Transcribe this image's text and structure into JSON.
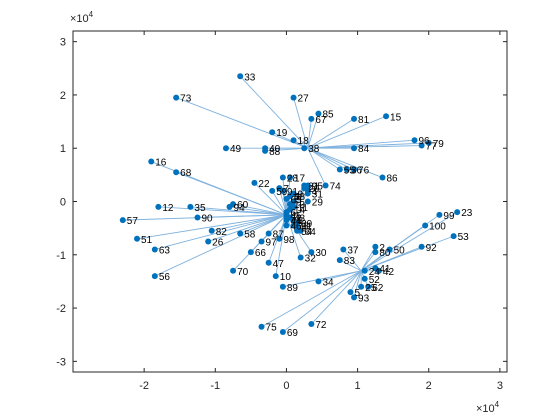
{
  "chart_data": {
    "type": "scatter",
    "title": "",
    "xlabel": "",
    "ylabel": "",
    "xlim": [
      -3,
      3.1
    ],
    "ylim": [
      -3.2,
      3.2
    ],
    "x_exponent": {
      "base": "×10",
      "power": "4"
    },
    "y_exponent": {
      "base": "×10",
      "power": "4"
    },
    "xticks": [
      -2,
      -1,
      0,
      1,
      2,
      3
    ],
    "yticks": [
      -3,
      -2,
      -1,
      0,
      1,
      2,
      3
    ],
    "xtick_labels": [
      "-2",
      "-1",
      "0",
      "1",
      "2",
      "3"
    ],
    "ytick_labels": [
      "-3",
      "-2",
      "-1",
      "0",
      "1",
      "2",
      "3"
    ],
    "grid": false,
    "legend": "none",
    "point_color": "#0072BD",
    "edge_color": "#7FB2DE",
    "hubs": [
      {
        "id": "h0",
        "x": 0.0,
        "y": -0.25
      },
      {
        "id": "h1",
        "x": 0.3,
        "y": 1.0
      },
      {
        "id": "h2",
        "x": 1.05,
        "y": -1.3
      }
    ],
    "points": [
      {
        "label": "2",
        "x": 1.25,
        "y": -0.85,
        "hub": "h2"
      },
      {
        "label": "5",
        "x": 0.9,
        "y": -1.7,
        "hub": "h2"
      },
      {
        "label": "10",
        "x": -0.15,
        "y": -1.4,
        "hub": "h0"
      },
      {
        "label": "12",
        "x": -1.8,
        "y": -0.1,
        "hub": "h0"
      },
      {
        "label": "15",
        "x": 1.4,
        "y": 1.6,
        "hub": "h1"
      },
      {
        "label": "16",
        "x": -1.9,
        "y": 0.75,
        "hub": "h0"
      },
      {
        "label": "18",
        "x": 0.1,
        "y": 1.15,
        "hub": "h1"
      },
      {
        "label": "19",
        "x": -0.2,
        "y": 1.3,
        "hub": "h1"
      },
      {
        "label": "22",
        "x": -0.45,
        "y": 0.35,
        "hub": "h0"
      },
      {
        "label": "23",
        "x": 2.4,
        "y": -0.2,
        "hub": "h2"
      },
      {
        "label": "24",
        "x": 1.1,
        "y": -1.3,
        "hub": "h2"
      },
      {
        "label": "26",
        "x": -1.1,
        "y": -0.75,
        "hub": "h0"
      },
      {
        "label": "27",
        "x": 0.1,
        "y": 1.95,
        "hub": "h1"
      },
      {
        "label": "29",
        "x": 0.3,
        "y": 0.0,
        "hub": "h0"
      },
      {
        "label": "30",
        "x": 0.35,
        "y": -0.95,
        "hub": "h0"
      },
      {
        "label": "32",
        "x": 0.2,
        "y": -1.05,
        "hub": "h0"
      },
      {
        "label": "33",
        "x": -0.65,
        "y": 2.35,
        "hub": "h1"
      },
      {
        "label": "34",
        "x": 0.45,
        "y": -1.5,
        "hub": "h2"
      },
      {
        "label": "35",
        "x": -1.35,
        "y": -0.1,
        "hub": "h0"
      },
      {
        "label": "36",
        "x": 0.85,
        "y": 0.6,
        "hub": "h1"
      },
      {
        "label": "37",
        "x": 0.8,
        "y": -0.9,
        "hub": "h2"
      },
      {
        "label": "38",
        "x": 0.25,
        "y": 1.0,
        "hub": "h1"
      },
      {
        "label": "40",
        "x": -0.3,
        "y": 1.0,
        "hub": "h1"
      },
      {
        "label": "41",
        "x": 1.25,
        "y": -1.25,
        "hub": "h2"
      },
      {
        "label": "42",
        "x": 1.3,
        "y": -1.3,
        "hub": "h2"
      },
      {
        "label": "47",
        "x": -0.25,
        "y": -1.15,
        "hub": "h0"
      },
      {
        "label": "49",
        "x": -0.85,
        "y": 1.0,
        "hub": "h1"
      },
      {
        "label": "50",
        "x": 1.45,
        "y": -0.9,
        "hub": "h2"
      },
      {
        "label": "51",
        "x": -2.1,
        "y": -0.7,
        "hub": "h0"
      },
      {
        "label": "52",
        "x": 1.1,
        "y": -1.45,
        "hub": "h2"
      },
      {
        "label": "53",
        "x": 2.35,
        "y": -0.65,
        "hub": "h2"
      },
      {
        "label": "55",
        "x": 0.75,
        "y": 0.6,
        "hub": "h1"
      },
      {
        "label": "56",
        "x": -1.85,
        "y": -1.4,
        "hub": "h0"
      },
      {
        "label": "57",
        "x": -2.3,
        "y": -0.35,
        "hub": "h0"
      },
      {
        "label": "58",
        "x": -0.65,
        "y": -0.6,
        "hub": "h0"
      },
      {
        "label": "59",
        "x": -0.2,
        "y": 0.2,
        "hub": "h0"
      },
      {
        "label": "60",
        "x": -0.75,
        "y": -0.05,
        "hub": "h0"
      },
      {
        "label": "62",
        "x": 1.15,
        "y": -1.6,
        "hub": "h2"
      },
      {
        "label": "63",
        "x": -1.85,
        "y": -0.9,
        "hub": "h0"
      },
      {
        "label": "66",
        "x": -0.5,
        "y": -0.95,
        "hub": "h0"
      },
      {
        "label": "67",
        "x": 0.35,
        "y": 1.55,
        "hub": "h1"
      },
      {
        "label": "68",
        "x": -1.55,
        "y": 0.55,
        "hub": "h0"
      },
      {
        "label": "69",
        "x": -0.05,
        "y": -2.45,
        "hub": "h2"
      },
      {
        "label": "70",
        "x": -0.75,
        "y": -1.3,
        "hub": "h0"
      },
      {
        "label": "72",
        "x": 0.35,
        "y": -2.3,
        "hub": "h2"
      },
      {
        "label": "73",
        "x": -1.55,
        "y": 1.95,
        "hub": "h1"
      },
      {
        "label": "74",
        "x": 0.55,
        "y": 0.3,
        "hub": "h1"
      },
      {
        "label": "75",
        "x": -0.35,
        "y": -2.35,
        "hub": "h2"
      },
      {
        "label": "77",
        "x": 1.9,
        "y": 1.05,
        "hub": "h1"
      },
      {
        "label": "79",
        "x": 2.0,
        "y": 1.1,
        "hub": "h1"
      },
      {
        "label": "82",
        "x": -1.05,
        "y": -0.55,
        "hub": "h0"
      },
      {
        "label": "83",
        "x": 0.75,
        "y": -1.1,
        "hub": "h2"
      },
      {
        "label": "84",
        "x": 0.95,
        "y": 1.0,
        "hub": "h1"
      },
      {
        "label": "85",
        "x": 0.45,
        "y": 1.65,
        "hub": "h1"
      },
      {
        "label": "86",
        "x": 1.35,
        "y": 0.45,
        "hub": "h1"
      },
      {
        "label": "88",
        "x": -0.3,
        "y": 0.95,
        "hub": "h1"
      },
      {
        "label": "89",
        "x": -0.05,
        "y": -1.6,
        "hub": "h2"
      },
      {
        "label": "90",
        "x": -1.25,
        "y": -0.3,
        "hub": "h0"
      },
      {
        "label": "91",
        "x": -0.05,
        "y": 0.2,
        "hub": "h0"
      },
      {
        "label": "92",
        "x": 1.9,
        "y": -0.85,
        "hub": "h2"
      },
      {
        "label": "93",
        "x": 0.95,
        "y": -1.8,
        "hub": "h2"
      },
      {
        "label": "94",
        "x": -0.8,
        "y": -0.1,
        "hub": "h0"
      },
      {
        "label": "95",
        "x": 0.3,
        "y": 0.3,
        "hub": "h0"
      },
      {
        "label": "96",
        "x": 1.8,
        "y": 1.15,
        "hub": "h1"
      },
      {
        "label": "97",
        "x": -0.35,
        "y": -0.75,
        "hub": "h0"
      },
      {
        "label": "98",
        "x": -0.1,
        "y": -0.7,
        "hub": "h0"
      },
      {
        "label": "99",
        "x": 2.15,
        "y": -0.25,
        "hub": "h2"
      },
      {
        "label": "100",
        "x": 1.95,
        "y": -0.45,
        "hub": "h2"
      },
      {
        "label": "4",
        "x": 0.3,
        "y": 0.2,
        "hub": "h0"
      },
      {
        "label": "13",
        "x": 0.05,
        "y": -0.05,
        "hub": "h0"
      },
      {
        "label": "14",
        "x": 0.05,
        "y": -0.15,
        "hub": "h0"
      },
      {
        "label": "17",
        "x": 0.05,
        "y": 0.45,
        "hub": "h0"
      },
      {
        "label": "20",
        "x": 0.25,
        "y": 0.25,
        "hub": "h0"
      },
      {
        "label": "28",
        "x": -0.05,
        "y": 0.45,
        "hub": "h0"
      },
      {
        "label": "44",
        "x": 0.0,
        "y": -0.35,
        "hub": "h0"
      },
      {
        "label": "46",
        "x": 0.0,
        "y": -0.45,
        "hub": "h0"
      },
      {
        "label": "54",
        "x": 0.15,
        "y": -0.55,
        "hub": "h0"
      },
      {
        "label": "64",
        "x": 0.2,
        "y": -0.55,
        "hub": "h0"
      },
      {
        "label": "65",
        "x": 0.0,
        "y": 0.05,
        "hub": "h0"
      },
      {
        "label": "76",
        "x": 0.95,
        "y": 0.6,
        "hub": "h1"
      },
      {
        "label": "80",
        "x": 1.25,
        "y": -0.95,
        "hub": "h2"
      },
      {
        "label": "81",
        "x": 0.95,
        "y": 1.55,
        "hub": "h1"
      },
      {
        "label": "87",
        "x": -0.25,
        "y": -0.6,
        "hub": "h0"
      },
      {
        "label": "8",
        "x": 0.05,
        "y": 0.1,
        "hub": "h0"
      },
      {
        "label": "9",
        "x": 0.1,
        "y": 0.15,
        "hub": "h0"
      },
      {
        "label": "31",
        "x": 0.3,
        "y": 0.15,
        "hub": "h0"
      },
      {
        "label": "39",
        "x": 0.15,
        "y": -0.4,
        "hub": "h0"
      },
      {
        "label": "45",
        "x": 0.0,
        "y": -0.25,
        "hub": "h0"
      },
      {
        "label": "48",
        "x": 0.05,
        "y": 0.1,
        "hub": "h0"
      },
      {
        "label": "61",
        "x": 0.15,
        "y": -0.45,
        "hub": "h0"
      },
      {
        "label": "71",
        "x": 0.0,
        "y": -0.3,
        "hub": "h0"
      },
      {
        "label": "78",
        "x": 0.1,
        "y": -0.45,
        "hub": "h0"
      },
      {
        "label": "1",
        "x": 0.1,
        "y": 0.0,
        "hub": "h0"
      },
      {
        "label": "3",
        "x": 0.1,
        "y": -0.35,
        "hub": "h0"
      },
      {
        "label": "6",
        "x": 0.0,
        "y": -0.2,
        "hub": "h0"
      },
      {
        "label": "7",
        "x": -0.1,
        "y": 0.25,
        "hub": "h0"
      },
      {
        "label": "11",
        "x": 0.1,
        "y": -0.1,
        "hub": "h0"
      },
      {
        "label": "21",
        "x": 0.25,
        "y": 0.3,
        "hub": "h0"
      },
      {
        "label": "25",
        "x": 1.05,
        "y": -1.6,
        "hub": "h2"
      },
      {
        "label": "43",
        "x": 0.05,
        "y": -0.3,
        "hub": "h0"
      }
    ]
  }
}
